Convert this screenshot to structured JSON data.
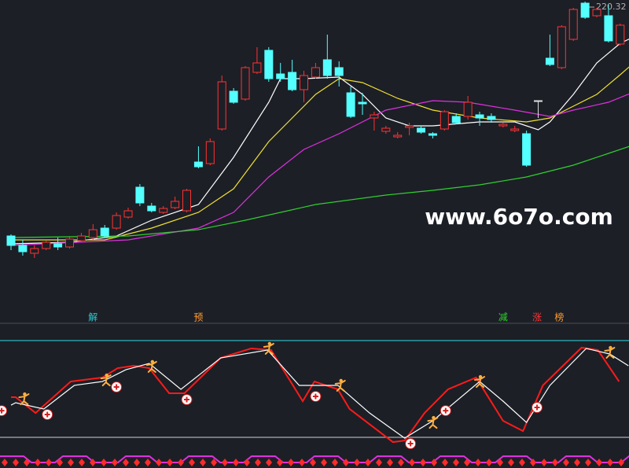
{
  "chart_data": [
    {
      "type": "candlestick",
      "xlim": [
        -0.94,
        52.75
      ],
      "ylim": [
        87,
        225
      ],
      "up_color": "#ff3333",
      "down_color": "#54ffff",
      "flat_color": "#e0e0e0",
      "open": [
        105,
        100.2,
        96.2,
        98.6,
        101,
        99.4,
        102.6,
        104.2,
        109,
        109,
        114.6,
        129.8,
        120.2,
        117,
        119.4,
        117.8,
        142.6,
        141.8,
        159.4,
        178.6,
        174.6,
        188.2,
        199.4,
        187.4,
        188.2,
        179.4,
        185.8,
        194.6,
        190.6,
        177.8,
        173,
        165,
        158.2,
        155.4,
        160.2,
        159.8,
        157,
        159.4,
        165.8,
        165.8,
        166.6,
        165.8,
        161,
        158.6,
        157,
        173.8,
        195.4,
        190.6,
        205,
        223.4,
        217,
        217,
        202.6
      ],
      "close": [
        100.2,
        97,
        98.6,
        101.8,
        99.4,
        103.4,
        105,
        108.2,
        105,
        115.4,
        117.8,
        121.8,
        117.8,
        119,
        122.6,
        128.2,
        140.2,
        153,
        183.4,
        173,
        190.6,
        193,
        185,
        185,
        179.4,
        186.6,
        190.6,
        186.6,
        186.6,
        165.8,
        172.2,
        166.6,
        159.8,
        156.2,
        161,
        157.8,
        156.2,
        168.2,
        162.6,
        173,
        165,
        164.2,
        161.8,
        159.4,
        141,
        173.8,
        192.2,
        211.4,
        220.2,
        216.2,
        220.2,
        204.2,
        212.2
      ],
      "high": [
        105.8,
        103,
        100.2,
        102.6,
        104.2,
        105,
        106.6,
        111,
        110.6,
        117,
        119.4,
        131.4,
        121.8,
        120.2,
        125,
        129,
        150.6,
        154.6,
        186.6,
        180.2,
        191.4,
        201,
        201,
        193,
        194.6,
        189,
        193,
        207.4,
        193.8,
        181,
        177.8,
        168.2,
        161,
        157.8,
        162.6,
        161,
        157.8,
        169,
        167.4,
        176.2,
        168.2,
        167.4,
        162.6,
        161,
        158.6,
        173.8,
        207.4,
        212.2,
        221,
        224.2,
        221,
        222.6,
        213
      ],
      "low": [
        97.8,
        95,
        93.8,
        97.8,
        97.8,
        98.6,
        101.8,
        103,
        104.2,
        108.2,
        113.8,
        120.2,
        117,
        116.2,
        118.6,
        117,
        139.4,
        141,
        158.6,
        172.2,
        173.8,
        187.4,
        183.4,
        183.4,
        178.6,
        173,
        185,
        185,
        181,
        165,
        166.6,
        158.6,
        157,
        154.6,
        156.2,
        157,
        154.6,
        158.6,
        161.8,
        164.2,
        161,
        162.6,
        160.2,
        157.8,
        140.2,
        165,
        191.4,
        189.8,
        204.2,
        215.4,
        216.2,
        203.4,
        201.8
      ],
      "max_price_label": "220.32",
      "watermark": "www.6o7o.com",
      "series": [
        {
          "name": "MA5",
          "color": "#ffffff",
          "x": [
            0,
            5,
            9,
            12,
            16,
            19,
            22,
            23,
            25,
            28,
            30,
            32,
            34,
            36,
            40,
            43,
            45,
            46,
            48,
            50,
            52,
            53
          ],
          "values": [
            101,
            101.8,
            105,
            113,
            121,
            145,
            173,
            185,
            185,
            185.8,
            177,
            165,
            161,
            161,
            163,
            163,
            159,
            163,
            177,
            193,
            203,
            205.8
          ]
        },
        {
          "name": "MA10",
          "color": "#f0e030",
          "x": [
            0,
            8,
            12,
            16,
            19,
            22,
            24,
            26,
            28,
            30,
            33,
            36,
            40,
            44,
            46,
            48,
            50,
            52,
            53
          ],
          "values": [
            103,
            103,
            109,
            117,
            129,
            153,
            165,
            177,
            185,
            183,
            175,
            169,
            165,
            163,
            165,
            171,
            177,
            187,
            192.2
          ]
        },
        {
          "name": "MA20",
          "color": "#e030e0",
          "x": [
            0,
            10,
            16,
            19,
            22,
            25,
            28,
            32,
            36,
            39,
            43,
            46,
            48,
            51,
            53
          ],
          "values": [
            100.2,
            103,
            109,
            117,
            135,
            149,
            157,
            169,
            173.8,
            173,
            169,
            165.8,
            169,
            173,
            177.8
          ]
        },
        {
          "name": "MA60",
          "color": "#30d030",
          "x": [
            0,
            10,
            16,
            20,
            26,
            32,
            36,
            40,
            44,
            48,
            51,
            53
          ],
          "values": [
            104.2,
            105,
            108.2,
            113,
            121,
            125.8,
            128.2,
            131,
            135,
            141,
            147,
            151
          ]
        }
      ],
      "markers": [
        {
          "label": "解",
          "x": 7,
          "color": "#30c8d0"
        },
        {
          "label": "预",
          "x": 16,
          "color": "#ff9a30"
        },
        {
          "label": "减",
          "x": 42,
          "color": "#30d030"
        },
        {
          "label": "涨",
          "x": 44.9,
          "color": "#ff3333"
        },
        {
          "label": "榜",
          "x": 46.8,
          "color": "#ff9a30"
        }
      ]
    },
    {
      "type": "line",
      "xlim": [
        -0.94,
        52.75
      ],
      "ylim": [
        -19.5,
        117.9
      ],
      "hlines": [
        {
          "value": 100,
          "color": "#30d8e8"
        },
        {
          "value": 0,
          "color": "#d0d0d0"
        }
      ],
      "series": [
        {
          "name": "K",
          "color": "#ff1a1a",
          "x": [
            0,
            0.4,
            2.1,
            5.1,
            7.8,
            9.1,
            10.5,
            11.8,
            13.5,
            14.8,
            17.9,
            20.5,
            22.2,
            24.9,
            25.9,
            27.9,
            28.9,
            32.6,
            33.6,
            35.3,
            37.3,
            39.7,
            42,
            43.7,
            45.4,
            48.7,
            50.1,
            51.9
          ],
          "values": [
            41.5,
            41.5,
            25.2,
            57.7,
            61.8,
            71.5,
            74,
            71.5,
            45.5,
            45.5,
            82.1,
            91.9,
            90.2,
            37.4,
            57.7,
            49.6,
            29.3,
            -4.9,
            -3.3,
            25.2,
            49.6,
            61.8,
            17.1,
            6.5,
            53.7,
            92.7,
            90.2,
            57.7
          ]
        },
        {
          "name": "D",
          "color": "#ffffff",
          "x": [
            0,
            0.4,
            2.8,
            5.4,
            7.8,
            9.8,
            11.8,
            14.5,
            17.9,
            21.9,
            24.6,
            27.9,
            30.6,
            33.6,
            36,
            40,
            42,
            44,
            46,
            49.1,
            51.1,
            52.7
          ],
          "values": [
            33.3,
            35.8,
            29.3,
            53.7,
            57.7,
            69.9,
            76.4,
            49.6,
            82.1,
            90.2,
            53.7,
            53.7,
            25.2,
            -0.8,
            17.1,
            57.7,
            37.4,
            15.4,
            53.7,
            91.9,
            86.2,
            74
          ]
        }
      ],
      "sell_signals": {
        "x": [
          1.1,
          8.1,
          12,
          22,
          28.1,
          36,
          40,
          51.1
        ],
        "values": [
          39.8,
          59.3,
          73.2,
          91.9,
          53.7,
          15.4,
          57.7,
          87.8
        ]
      },
      "buy_signals": {
        "x": [
          -0.8,
          3.1,
          9,
          15,
          26,
          34.1,
          37.1,
          44.9
        ],
        "values": [
          27.6,
          23.6,
          52,
          39,
          42.3,
          -6.5,
          27.6,
          30.9
        ]
      }
    }
  ]
}
